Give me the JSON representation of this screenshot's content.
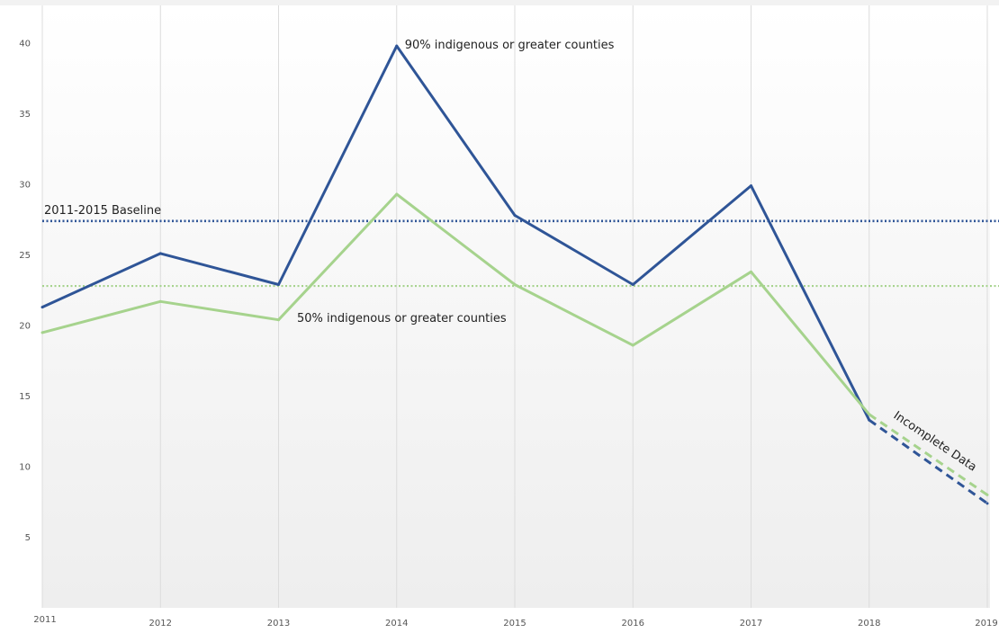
{
  "chart_data": {
    "type": "line",
    "x": [
      2011,
      2012,
      2013,
      2014,
      2015,
      2016,
      2017,
      2018,
      2019
    ],
    "ylim": [
      0,
      40
    ],
    "yticks": [
      5,
      10,
      15,
      20,
      25,
      30,
      35,
      40
    ],
    "grid": "vertical",
    "series": [
      {
        "name": "90% indigenous or greater counties",
        "color": "#2f5597",
        "values": [
          21.3,
          25.1,
          22.9,
          39.8,
          27.8,
          22.9,
          29.9,
          13.3,
          7.4
        ],
        "dashed_from_x": 2018
      },
      {
        "name": "50% indigenous or greater counties",
        "color": "#a6d38d",
        "values": [
          19.5,
          21.7,
          20.4,
          29.3,
          22.9,
          18.6,
          23.8,
          13.7,
          8.0
        ],
        "dashed_from_x": 2018
      }
    ],
    "baselines": [
      {
        "label": "2011-2015 Baseline",
        "value": 27.4,
        "color": "#2f5597"
      },
      {
        "label": "",
        "value": 22.8,
        "color": "#a6d38d"
      }
    ],
    "annotations": {
      "incomplete_data": "Incomplete Data"
    }
  }
}
